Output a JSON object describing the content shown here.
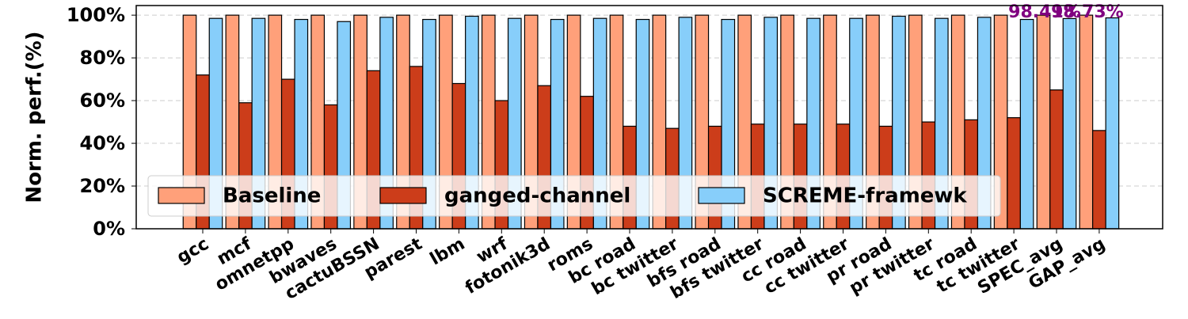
{
  "chart_data": {
    "type": "bar",
    "ylabel": "Norm. perf.(%)",
    "categories": [
      "gcc",
      "mcf",
      "omnetpp",
      "bwaves",
      "cactuBSSN",
      "parest",
      "lbm",
      "wrf",
      "fotonik3d",
      "roms",
      "bc road",
      "bc twitter",
      "bfs road",
      "bfs twitter",
      "cc road",
      "cc twitter",
      "pr road",
      "pr twitter",
      "tc road",
      "tc twitter",
      "SPEC_avg",
      "GAP_avg"
    ],
    "series": [
      {
        "name": "Baseline",
        "color": "#ffa07a",
        "values": [
          100,
          100,
          100,
          100,
          100,
          100,
          100,
          100,
          100,
          100,
          100,
          100,
          100,
          100,
          100,
          100,
          100,
          100,
          100,
          100,
          100,
          100
        ]
      },
      {
        "name": "ganged-channel",
        "color": "#cc3d1a",
        "values": [
          72,
          59,
          70,
          58,
          74,
          76,
          68,
          60,
          67,
          62,
          48,
          47,
          48,
          49,
          49,
          49,
          48,
          50,
          51,
          52,
          65,
          46
        ]
      },
      {
        "name": "SCREME-framewk",
        "color": "#87cefa",
        "values": [
          98.5,
          98.5,
          98,
          97,
          99,
          98,
          99.5,
          98.5,
          98,
          98.5,
          98,
          99,
          98,
          99,
          98.5,
          98.5,
          99.5,
          98.5,
          99,
          98,
          98.41,
          98.73
        ],
        "value_labels": [
          null,
          null,
          null,
          null,
          null,
          null,
          null,
          null,
          null,
          null,
          null,
          null,
          null,
          null,
          null,
          null,
          null,
          null,
          null,
          null,
          "98.41%",
          "98.73%"
        ],
        "value_label_color": "#800080"
      }
    ],
    "ylim": [
      0,
      104.5
    ],
    "yticks": [
      {
        "value": 0,
        "label": "0%"
      },
      {
        "value": 20,
        "label": "20%"
      },
      {
        "value": 40,
        "label": "40%"
      },
      {
        "value": 60,
        "label": "60%"
      },
      {
        "value": 80,
        "label": "80%"
      },
      {
        "value": 100,
        "label": "100%"
      }
    ],
    "grid": true,
    "legend": "lower left"
  }
}
